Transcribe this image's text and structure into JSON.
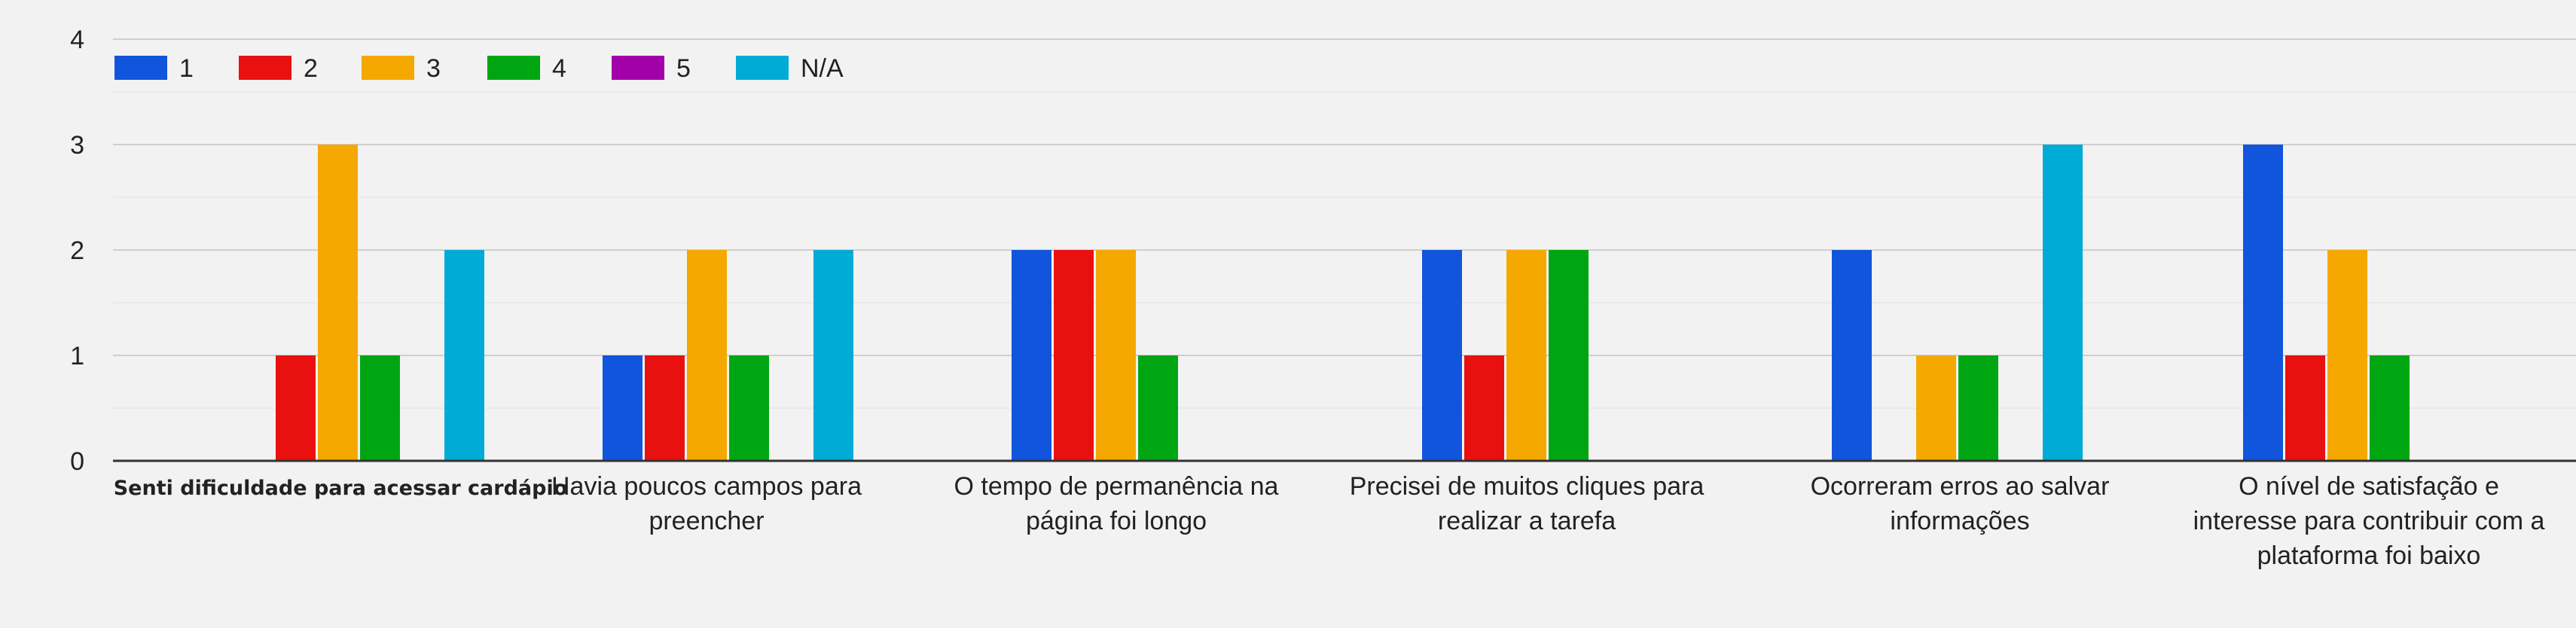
{
  "chart_data": {
    "type": "bar",
    "title": "",
    "xlabel": "",
    "ylabel": "",
    "ylim": [
      0,
      4
    ],
    "yticks": [
      "0",
      "1",
      "2",
      "3",
      "4"
    ],
    "grid": true,
    "legend_position": "top-left",
    "categories": [
      "Senti dificuldade para acessar cardápio",
      "Havia poucos campos para preencher",
      "O tempo de permanência na página foi longo",
      "Precisei de muitos cliques para realizar a tarefa",
      "Ocorreram erros ao salvar informações",
      "O nível de satisfação e interesse para contribuir com a plataforma foi baixo"
    ],
    "category_lines": [
      [
        "Senti dificuldade para acessar cardápio"
      ],
      [
        "Havia poucos campos para",
        "preencher"
      ],
      [
        "O tempo de permanência na",
        "página foi longo"
      ],
      [
        "Precisei de muitos cliques para",
        "realizar a tarefa"
      ],
      [
        "Ocorreram erros ao salvar",
        "informações"
      ],
      [
        "O nível de satisfação e",
        "interesse para contribuir com a",
        "plataforma foi baixo"
      ]
    ],
    "series": [
      {
        "name": "1",
        "color": "#1155dd",
        "values": [
          0,
          1,
          2,
          2,
          2,
          3
        ]
      },
      {
        "name": "2",
        "color": "#e8110f",
        "values": [
          1,
          1,
          2,
          1,
          0,
          1
        ]
      },
      {
        "name": "3",
        "color": "#f5a800",
        "values": [
          3,
          2,
          2,
          2,
          1,
          2
        ]
      },
      {
        "name": "4",
        "color": "#00a612",
        "values": [
          1,
          1,
          1,
          2,
          1,
          1
        ]
      },
      {
        "name": "5",
        "color": "#a200a8",
        "values": [
          0,
          0,
          0,
          0,
          0,
          0
        ]
      },
      {
        "name": "N/A",
        "color": "#00abd6",
        "values": [
          2,
          2,
          0,
          0,
          3,
          0
        ]
      }
    ]
  }
}
